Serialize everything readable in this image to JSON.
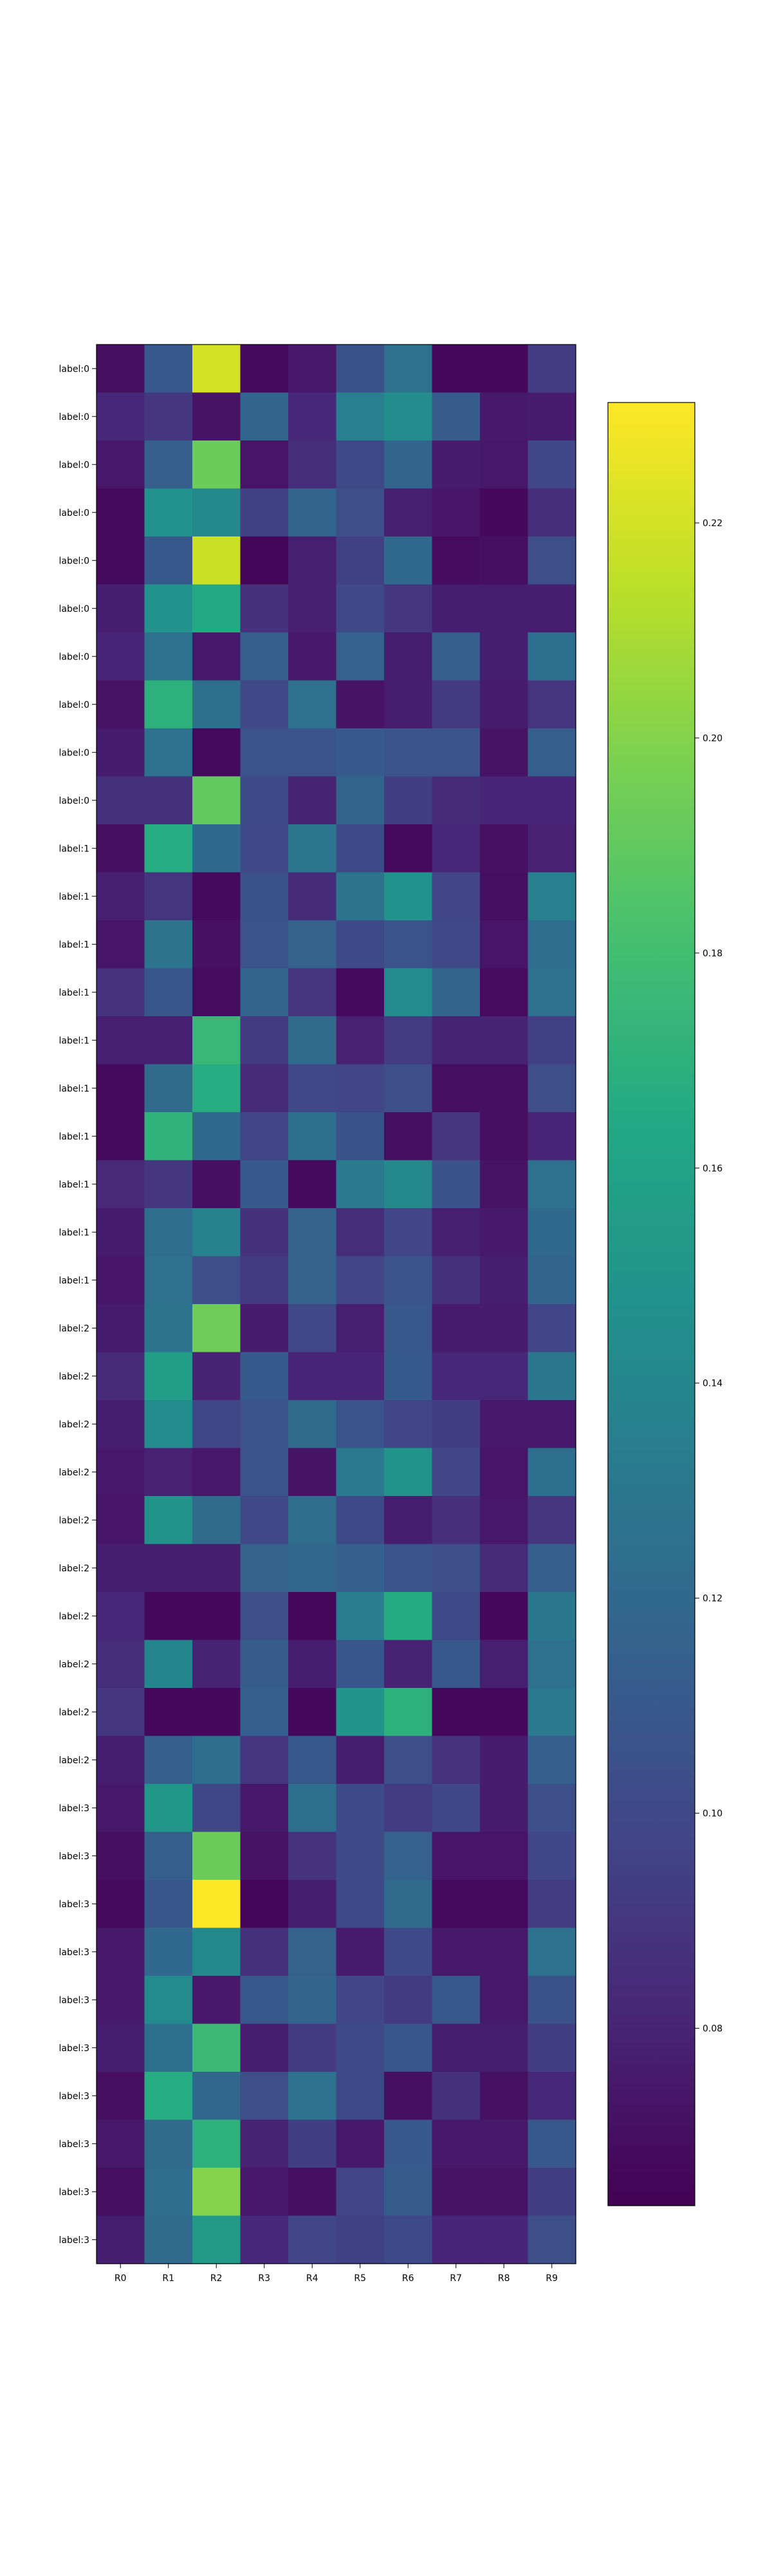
{
  "chart_data": {
    "type": "heatmap",
    "title": "",
    "xlabel": "",
    "ylabel": "",
    "x_labels": [
      "R0",
      "R1",
      "R2",
      "R3",
      "R4",
      "R5",
      "R6",
      "R7",
      "R8",
      "R9"
    ],
    "y_labels": [
      "label:0",
      "label:0",
      "label:0",
      "label:0",
      "label:0",
      "label:0",
      "label:0",
      "label:0",
      "label:0",
      "label:0",
      "label:1",
      "label:1",
      "label:1",
      "label:1",
      "label:1",
      "label:1",
      "label:1",
      "label:1",
      "label:1",
      "label:1",
      "label:2",
      "label:2",
      "label:2",
      "label:2",
      "label:2",
      "label:2",
      "label:2",
      "label:2",
      "label:2",
      "label:2",
      "label:3",
      "label:3",
      "label:3",
      "label:3",
      "label:3",
      "label:3",
      "label:3",
      "label:3",
      "label:3",
      "label:3"
    ],
    "values": [
      [
        0.07,
        0.11,
        0.22,
        0.068,
        0.074,
        0.105,
        0.125,
        0.067,
        0.067,
        0.093
      ],
      [
        0.082,
        0.09,
        0.072,
        0.118,
        0.082,
        0.135,
        0.145,
        0.112,
        0.075,
        0.076
      ],
      [
        0.074,
        0.114,
        0.193,
        0.073,
        0.085,
        0.101,
        0.118,
        0.076,
        0.074,
        0.099
      ],
      [
        0.068,
        0.148,
        0.141,
        0.095,
        0.118,
        0.103,
        0.078,
        0.073,
        0.067,
        0.085
      ],
      [
        0.068,
        0.11,
        0.218,
        0.066,
        0.078,
        0.095,
        0.12,
        0.069,
        0.07,
        0.103
      ],
      [
        0.077,
        0.148,
        0.165,
        0.087,
        0.078,
        0.1,
        0.09,
        0.077,
        0.077,
        0.077
      ],
      [
        0.081,
        0.126,
        0.075,
        0.113,
        0.075,
        0.115,
        0.077,
        0.113,
        0.077,
        0.124
      ],
      [
        0.072,
        0.17,
        0.124,
        0.1,
        0.126,
        0.072,
        0.077,
        0.092,
        0.076,
        0.089
      ],
      [
        0.076,
        0.126,
        0.068,
        0.106,
        0.107,
        0.11,
        0.107,
        0.107,
        0.072,
        0.113
      ],
      [
        0.087,
        0.087,
        0.19,
        0.102,
        0.08,
        0.118,
        0.094,
        0.084,
        0.081,
        0.081
      ],
      [
        0.07,
        0.167,
        0.12,
        0.1,
        0.129,
        0.101,
        0.068,
        0.082,
        0.071,
        0.079
      ],
      [
        0.078,
        0.089,
        0.068,
        0.105,
        0.084,
        0.127,
        0.148,
        0.098,
        0.07,
        0.135
      ],
      [
        0.073,
        0.128,
        0.071,
        0.106,
        0.116,
        0.101,
        0.106,
        0.1,
        0.073,
        0.123
      ],
      [
        0.088,
        0.108,
        0.069,
        0.118,
        0.089,
        0.068,
        0.143,
        0.117,
        0.069,
        0.125
      ],
      [
        0.078,
        0.078,
        0.175,
        0.092,
        0.122,
        0.079,
        0.093,
        0.08,
        0.08,
        0.095
      ],
      [
        0.068,
        0.122,
        0.167,
        0.084,
        0.1,
        0.098,
        0.103,
        0.07,
        0.07,
        0.103
      ],
      [
        0.068,
        0.172,
        0.12,
        0.097,
        0.124,
        0.105,
        0.07,
        0.089,
        0.07,
        0.081
      ],
      [
        0.083,
        0.09,
        0.07,
        0.11,
        0.068,
        0.131,
        0.141,
        0.105,
        0.072,
        0.125
      ],
      [
        0.076,
        0.123,
        0.137,
        0.087,
        0.116,
        0.085,
        0.098,
        0.078,
        0.075,
        0.12
      ],
      [
        0.073,
        0.125,
        0.103,
        0.092,
        0.116,
        0.098,
        0.107,
        0.087,
        0.077,
        0.118
      ],
      [
        0.076,
        0.127,
        0.194,
        0.076,
        0.1,
        0.078,
        0.109,
        0.076,
        0.076,
        0.098
      ],
      [
        0.084,
        0.156,
        0.08,
        0.111,
        0.081,
        0.081,
        0.111,
        0.082,
        0.082,
        0.129
      ],
      [
        0.077,
        0.143,
        0.099,
        0.107,
        0.122,
        0.107,
        0.097,
        0.094,
        0.075,
        0.075
      ],
      [
        0.074,
        0.079,
        0.074,
        0.106,
        0.072,
        0.131,
        0.149,
        0.098,
        0.073,
        0.124
      ],
      [
        0.073,
        0.149,
        0.121,
        0.1,
        0.123,
        0.101,
        0.077,
        0.086,
        0.074,
        0.09
      ],
      [
        0.077,
        0.077,
        0.077,
        0.116,
        0.119,
        0.114,
        0.107,
        0.104,
        0.084,
        0.113
      ],
      [
        0.082,
        0.067,
        0.067,
        0.104,
        0.067,
        0.134,
        0.166,
        0.101,
        0.067,
        0.13
      ],
      [
        0.085,
        0.139,
        0.08,
        0.112,
        0.077,
        0.108,
        0.08,
        0.109,
        0.078,
        0.126
      ],
      [
        0.09,
        0.067,
        0.067,
        0.114,
        0.067,
        0.15,
        0.17,
        0.067,
        0.067,
        0.131
      ],
      [
        0.077,
        0.114,
        0.123,
        0.089,
        0.109,
        0.077,
        0.104,
        0.088,
        0.076,
        0.114
      ],
      [
        0.075,
        0.152,
        0.099,
        0.074,
        0.124,
        0.102,
        0.093,
        0.099,
        0.076,
        0.104
      ],
      [
        0.07,
        0.113,
        0.193,
        0.072,
        0.088,
        0.102,
        0.115,
        0.073,
        0.073,
        0.099
      ],
      [
        0.068,
        0.108,
        0.232,
        0.066,
        0.077,
        0.101,
        0.122,
        0.068,
        0.068,
        0.093
      ],
      [
        0.075,
        0.12,
        0.142,
        0.087,
        0.116,
        0.076,
        0.101,
        0.075,
        0.075,
        0.126
      ],
      [
        0.075,
        0.143,
        0.075,
        0.109,
        0.117,
        0.098,
        0.092,
        0.109,
        0.075,
        0.105
      ],
      [
        0.077,
        0.124,
        0.177,
        0.077,
        0.092,
        0.101,
        0.108,
        0.077,
        0.077,
        0.094
      ],
      [
        0.07,
        0.167,
        0.119,
        0.103,
        0.126,
        0.101,
        0.07,
        0.087,
        0.071,
        0.082
      ],
      [
        0.075,
        0.122,
        0.17,
        0.08,
        0.094,
        0.075,
        0.11,
        0.075,
        0.075,
        0.109
      ],
      [
        0.07,
        0.123,
        0.2,
        0.074,
        0.07,
        0.098,
        0.112,
        0.072,
        0.072,
        0.094
      ],
      [
        0.077,
        0.122,
        0.155,
        0.082,
        0.098,
        0.095,
        0.101,
        0.081,
        0.081,
        0.103
      ]
    ],
    "colorbar": {
      "colormap": "viridis",
      "vmin": 0.0635,
      "vmax": 0.2312,
      "ticks": [
        0.08,
        0.1,
        0.12,
        0.14,
        0.16,
        0.18,
        0.2,
        0.22
      ],
      "tick_labels": [
        "0.08",
        "0.10",
        "0.12",
        "0.14",
        "0.16",
        "0.18",
        "0.20",
        "0.22"
      ]
    },
    "grid": false
  }
}
